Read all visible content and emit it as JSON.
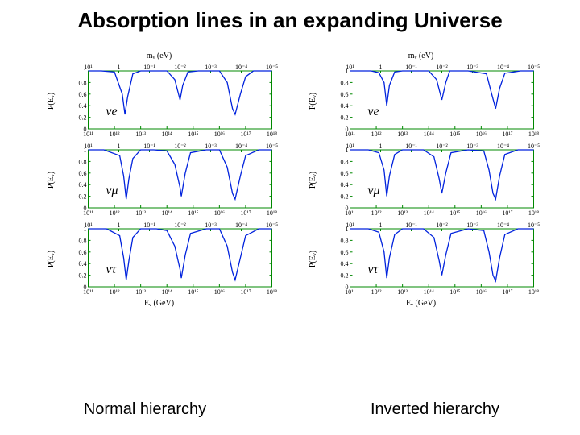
{
  "title": "Absorption lines in an expanding Universe",
  "captions": {
    "left": "Normal hierarchy",
    "right": "Inverted hierarchy"
  },
  "xlabel_bottom": "Eᵥ (GeV)",
  "xlabel_top": "mᵥ (eV)",
  "ylabel_prefix": "P(Eᵥ)",
  "plot_box_color": "#008800",
  "tick_color": "#008800",
  "line_color": "#0022dd",
  "line_width": 1.3,
  "background": "#ffffff",
  "y_axis": {
    "min": 0,
    "max": 1,
    "ticks": [
      0,
      0.2,
      0.4,
      0.6,
      0.8,
      1
    ],
    "labels": [
      "0",
      "0.2",
      "0.4",
      "0.6",
      "0.8",
      "1"
    ]
  },
  "x_axis_bottom": {
    "log": true,
    "min": 11,
    "max": 18,
    "ticks": [
      11,
      12,
      13,
      14,
      15,
      16,
      17,
      18
    ],
    "labels": [
      "10¹¹",
      "10¹²",
      "10¹³",
      "10¹⁴",
      "10¹⁵",
      "10¹⁶",
      "10¹⁷",
      "10¹⁸"
    ]
  },
  "x_axis_top": {
    "log": true,
    "min": -5,
    "max": 1,
    "ticks": [
      1,
      0,
      -1,
      -2,
      -3,
      -4,
      -5
    ],
    "labels": [
      "10¹",
      "1",
      "10⁻¹",
      "10⁻²",
      "10⁻³",
      "10⁻⁴",
      "10⁻⁵"
    ]
  },
  "tick_fontsize": 8,
  "panels": {
    "normal": [
      {
        "flavor": "νe",
        "top_axis": true,
        "pts": [
          [
            11,
            1
          ],
          [
            11.5,
            1
          ],
          [
            12,
            0.98
          ],
          [
            12.3,
            0.6
          ],
          [
            12.4,
            0.25
          ],
          [
            12.5,
            0.55
          ],
          [
            12.7,
            0.95
          ],
          [
            13,
            1
          ],
          [
            13.5,
            1
          ],
          [
            14,
            1
          ],
          [
            14.3,
            0.85
          ],
          [
            14.5,
            0.5
          ],
          [
            14.6,
            0.75
          ],
          [
            14.8,
            0.98
          ],
          [
            15.2,
            1
          ],
          [
            16,
            1
          ],
          [
            16.3,
            0.8
          ],
          [
            16.5,
            0.35
          ],
          [
            16.6,
            0.25
          ],
          [
            16.8,
            0.6
          ],
          [
            17,
            0.9
          ],
          [
            17.3,
            1
          ],
          [
            18,
            1
          ]
        ]
      },
      {
        "flavor": "νμ",
        "top_axis": true,
        "pts": [
          [
            11,
            1
          ],
          [
            11.6,
            1
          ],
          [
            12.2,
            0.9
          ],
          [
            12.35,
            0.55
          ],
          [
            12.45,
            0.15
          ],
          [
            12.55,
            0.5
          ],
          [
            12.7,
            0.85
          ],
          [
            13,
            1
          ],
          [
            13.5,
            1
          ],
          [
            14,
            0.98
          ],
          [
            14.3,
            0.75
          ],
          [
            14.5,
            0.35
          ],
          [
            14.55,
            0.2
          ],
          [
            14.7,
            0.6
          ],
          [
            14.9,
            0.95
          ],
          [
            15.5,
            1
          ],
          [
            16,
            1
          ],
          [
            16.3,
            0.7
          ],
          [
            16.5,
            0.25
          ],
          [
            16.6,
            0.15
          ],
          [
            16.8,
            0.55
          ],
          [
            17,
            0.9
          ],
          [
            17.5,
            1
          ],
          [
            18,
            1
          ]
        ]
      },
      {
        "flavor": "ντ",
        "top_axis": true,
        "bottom_axis": true,
        "pts": [
          [
            11,
            1
          ],
          [
            11.7,
            1
          ],
          [
            12.2,
            0.88
          ],
          [
            12.35,
            0.5
          ],
          [
            12.45,
            0.12
          ],
          [
            12.55,
            0.45
          ],
          [
            12.7,
            0.85
          ],
          [
            13,
            1
          ],
          [
            13.6,
            1
          ],
          [
            14,
            0.97
          ],
          [
            14.3,
            0.7
          ],
          [
            14.5,
            0.3
          ],
          [
            14.55,
            0.15
          ],
          [
            14.7,
            0.55
          ],
          [
            14.9,
            0.92
          ],
          [
            15.5,
            1
          ],
          [
            16,
            1
          ],
          [
            16.3,
            0.7
          ],
          [
            16.5,
            0.25
          ],
          [
            16.6,
            0.12
          ],
          [
            16.8,
            0.5
          ],
          [
            17,
            0.88
          ],
          [
            17.5,
            1
          ],
          [
            18,
            1
          ]
        ]
      }
    ],
    "inverted": [
      {
        "flavor": "νe",
        "top_axis": true,
        "pts": [
          [
            11,
            1
          ],
          [
            11.8,
            1
          ],
          [
            12.1,
            0.97
          ],
          [
            12.3,
            0.8
          ],
          [
            12.4,
            0.4
          ],
          [
            12.5,
            0.75
          ],
          [
            12.7,
            0.98
          ],
          [
            13,
            1
          ],
          [
            14,
            1
          ],
          [
            14.3,
            0.85
          ],
          [
            14.5,
            0.5
          ],
          [
            14.65,
            0.8
          ],
          [
            14.8,
            1
          ],
          [
            15.5,
            1
          ],
          [
            16.2,
            0.95
          ],
          [
            16.4,
            0.6
          ],
          [
            16.55,
            0.35
          ],
          [
            16.7,
            0.7
          ],
          [
            16.9,
            0.96
          ],
          [
            17.5,
            1
          ],
          [
            18,
            1
          ]
        ]
      },
      {
        "flavor": "νμ",
        "top_axis": true,
        "pts": [
          [
            11,
            1
          ],
          [
            11.7,
            1
          ],
          [
            12.1,
            0.95
          ],
          [
            12.3,
            0.65
          ],
          [
            12.4,
            0.2
          ],
          [
            12.5,
            0.55
          ],
          [
            12.7,
            0.92
          ],
          [
            13,
            1
          ],
          [
            13.8,
            1
          ],
          [
            14.2,
            0.88
          ],
          [
            14.4,
            0.5
          ],
          [
            14.5,
            0.25
          ],
          [
            14.65,
            0.6
          ],
          [
            14.85,
            0.95
          ],
          [
            15.5,
            1
          ],
          [
            16.1,
            0.98
          ],
          [
            16.3,
            0.65
          ],
          [
            16.45,
            0.25
          ],
          [
            16.55,
            0.15
          ],
          [
            16.7,
            0.55
          ],
          [
            16.9,
            0.92
          ],
          [
            17.4,
            1
          ],
          [
            18,
            1
          ]
        ]
      },
      {
        "flavor": "ντ",
        "top_axis": true,
        "bottom_axis": true,
        "pts": [
          [
            11,
            1
          ],
          [
            11.7,
            1
          ],
          [
            12.1,
            0.94
          ],
          [
            12.3,
            0.6
          ],
          [
            12.4,
            0.15
          ],
          [
            12.5,
            0.5
          ],
          [
            12.7,
            0.9
          ],
          [
            13,
            1
          ],
          [
            13.8,
            1
          ],
          [
            14.2,
            0.85
          ],
          [
            14.4,
            0.45
          ],
          [
            14.5,
            0.2
          ],
          [
            14.65,
            0.55
          ],
          [
            14.85,
            0.92
          ],
          [
            15.5,
            1
          ],
          [
            16.1,
            0.97
          ],
          [
            16.3,
            0.6
          ],
          [
            16.45,
            0.2
          ],
          [
            16.55,
            0.1
          ],
          [
            16.7,
            0.5
          ],
          [
            16.9,
            0.9
          ],
          [
            17.4,
            1
          ],
          [
            18,
            1
          ]
        ]
      }
    ]
  }
}
